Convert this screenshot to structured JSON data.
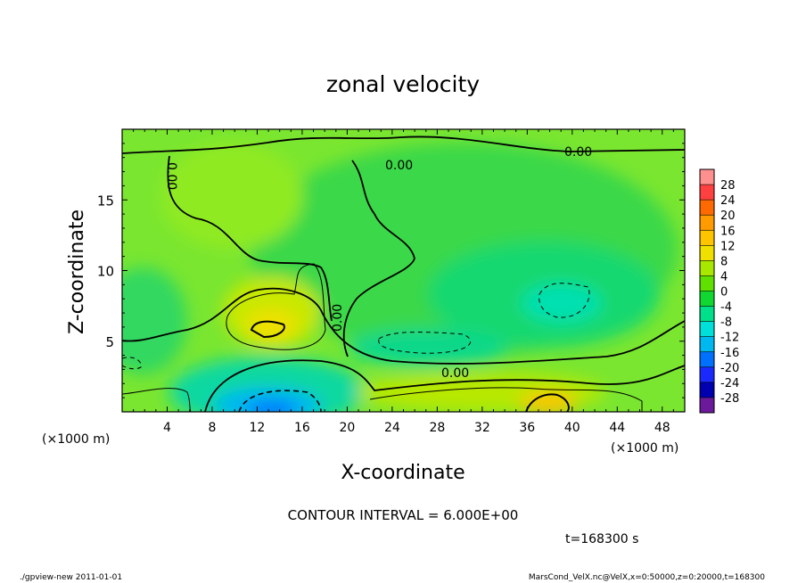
{
  "chart_data": {
    "type": "heatmap",
    "title": "zonal velocity",
    "xlabel": "X-coordinate",
    "ylabel": "Z-coordinate",
    "x_unit_note": "(×1000 m)",
    "y_unit_note": "(×1000 m)",
    "xlim": [
      0,
      50
    ],
    "ylim": [
      0,
      20
    ],
    "x_ticks": [
      4,
      8,
      12,
      16,
      20,
      24,
      28,
      32,
      36,
      40,
      44,
      48
    ],
    "y_ticks": [
      5,
      10,
      15
    ],
    "colorbar_levels": [
      28,
      24,
      20,
      16,
      12,
      8,
      4,
      0,
      -4,
      -8,
      -12,
      -16,
      -20,
      -24,
      -28
    ],
    "colorbar_colors": [
      "#ff9090",
      "#ff4040",
      "#ff6a00",
      "#ff9a00",
      "#ffc400",
      "#f0e000",
      "#a8e800",
      "#60e000",
      "#10d830",
      "#00e08a",
      "#00e0d8",
      "#00b8f0",
      "#0070ff",
      "#1a2aff",
      "#0000b0",
      "#6a1a9a"
    ],
    "contour_labels": [
      "0.00",
      "0.00",
      "0.00",
      "0.00",
      "0.00"
    ],
    "contour_interval": "CONTOUR INTERVAL = 6.000E+00",
    "time": "t=168300 s",
    "grid": false,
    "legend": "right"
  },
  "footer": {
    "left": "./gpview-new 2011-01-01",
    "right": "MarsCond_VelX.nc@VelX,x=0:50000,z=0:20000,t=168300"
  },
  "colors": {
    "background_field": "#7ae630",
    "frame": "#000000"
  }
}
